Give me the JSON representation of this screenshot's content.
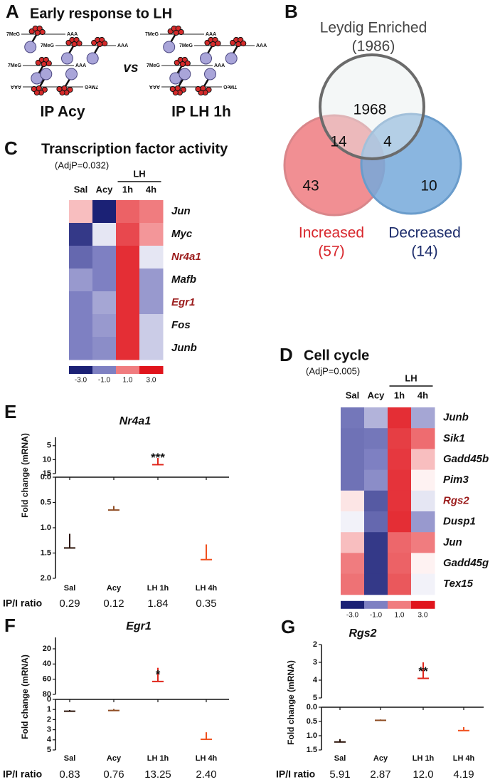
{
  "chart_data": [
    {
      "panel": "A",
      "type": "diagram",
      "title": "Early response to LH",
      "cap_label": "7MeG",
      "tail_label": "AAA",
      "separator": "vs",
      "conditions": [
        "IP Acy",
        "IP LH 1h"
      ]
    },
    {
      "panel": "B",
      "type": "venn",
      "sets": [
        {
          "name": "Leydig Enriched",
          "size": 1986,
          "size_label": "(1986)",
          "color": "#e6eded",
          "edge_color": "#6b6b6b",
          "label_color": "#444444"
        },
        {
          "name": "Increased",
          "size": 57,
          "size_label": "(57)",
          "color": "#ee7b80",
          "edge_color": "#d9868a",
          "label_color": "#d8262c"
        },
        {
          "name": "Decreased",
          "size": 14,
          "size_label": "(14)",
          "color": "#76a9da",
          "edge_color": "#6a9ccb",
          "label_color": "#1c2c6b"
        }
      ],
      "regions": [
        {
          "sets": [
            0
          ],
          "value": 1968
        },
        {
          "sets": [
            0,
            1
          ],
          "value": 14
        },
        {
          "sets": [
            0,
            2
          ],
          "value": 4
        },
        {
          "sets": [
            1
          ],
          "value": 43
        },
        {
          "sets": [
            2
          ],
          "value": 10
        }
      ]
    },
    {
      "panel": "C",
      "type": "heatmap",
      "title": "Transcription factor activity",
      "subtitle": "(AdjP=0.032)",
      "columns": [
        "Sal",
        "Acy",
        "1h",
        "4h"
      ],
      "column_group": {
        "name": "LH",
        "columns": [
          2,
          3
        ]
      },
      "rows": [
        "Jun",
        "Myc",
        "Nr4a1",
        "Mafb",
        "Egr1",
        "Fos",
        "Junb"
      ],
      "highlight_rows": [
        2,
        4
      ],
      "highlight_color": "#9b1c1c",
      "values": [
        [
          0.5,
          -3.0,
          1.5,
          1.0
        ],
        [
          -2.5,
          -0.2,
          2.0,
          0.8
        ],
        [
          -1.5,
          -1.0,
          2.5,
          -0.2
        ],
        [
          -0.8,
          -1.0,
          2.5,
          -0.8
        ],
        [
          -1.0,
          -0.7,
          2.5,
          -0.8
        ],
        [
          -1.0,
          -0.8,
          2.5,
          -0.4
        ],
        [
          -1.0,
          -0.9,
          2.5,
          -0.4
        ]
      ],
      "colorscale": [
        [
          -3,
          "#1b2175"
        ],
        [
          -1,
          "#7e80c2"
        ],
        [
          0,
          "#ffffff"
        ],
        [
          1,
          "#f07c7f"
        ],
        [
          3,
          "#e0141c"
        ]
      ],
      "cticks": [
        {
          "value": -3,
          "label": "-3.0"
        },
        {
          "value": -1,
          "label": "-1.0"
        },
        {
          "value": 1,
          "label": "1.0"
        },
        {
          "value": 3,
          "label": "3.0"
        }
      ]
    },
    {
      "panel": "D",
      "type": "heatmap",
      "title": "Cell cycle",
      "subtitle": "(AdjP=0.005)",
      "columns": [
        "Sal",
        "Acy",
        "1h",
        "4h"
      ],
      "column_group": {
        "name": "LH",
        "columns": [
          2,
          3
        ]
      },
      "rows": [
        "Junb",
        "Sik1",
        "Gadd45b",
        "Pim3",
        "Rgs2",
        "Dusp1",
        "Jun",
        "Gadd45g",
        "Tex15"
      ],
      "highlight_rows": [
        4
      ],
      "highlight_color": "#9b1c1c",
      "values": [
        [
          -1.2,
          -0.6,
          2.5,
          -0.7
        ],
        [
          -1.3,
          -1.2,
          2.2,
          1.3
        ],
        [
          -1.3,
          -1.0,
          2.3,
          0.5
        ],
        [
          -1.3,
          -0.9,
          2.4,
          0.1
        ],
        [
          0.2,
          -1.8,
          2.4,
          -0.2
        ],
        [
          -0.1,
          -1.5,
          2.5,
          -0.8
        ],
        [
          0.5,
          -2.5,
          1.4,
          1.0
        ],
        [
          1.0,
          -2.5,
          1.5,
          0.1
        ],
        [
          1.2,
          -2.5,
          1.7,
          -0.1
        ]
      ],
      "colorscale": [
        [
          -3,
          "#1b2175"
        ],
        [
          -1,
          "#7e80c2"
        ],
        [
          0,
          "#ffffff"
        ],
        [
          1,
          "#f07c7f"
        ],
        [
          3,
          "#e0141c"
        ]
      ],
      "cticks": [
        {
          "value": -3,
          "label": "-3.0"
        },
        {
          "value": -1,
          "label": "-1.0"
        },
        {
          "value": 1,
          "label": "1.0"
        },
        {
          "value": 3,
          "label": "3.0"
        }
      ]
    },
    {
      "panel": "E",
      "type": "bar",
      "title": "Nr4a1",
      "ylabel": "Fold change (mRNA)",
      "categories": [
        "Sal",
        "Acy",
        "LH 1h",
        "LH 4h"
      ],
      "colors": [
        "#2a1208",
        "#8f4d24",
        "#e0261b",
        "#f0501e"
      ],
      "values": [
        1.12,
        0.57,
        9.4,
        1.33
      ],
      "errors": [
        0.28,
        0.08,
        2.4,
        0.3
      ],
      "significance": [
        null,
        null,
        "***",
        null
      ],
      "axes": [
        {
          "ylim": [
            0,
            2
          ],
          "yticks": [
            {
              "value": 0,
              "label": "0.0"
            },
            0.5,
            {
              "value": 1,
              "label": "1.0"
            },
            1.5,
            {
              "value": 2,
              "label": "2.0"
            }
          ]
        },
        {
          "ylim": [
            2,
            15
          ],
          "yticks": [
            5,
            10,
            15
          ]
        }
      ],
      "ratio_label": "IP/I ratio",
      "ratios": [
        0.29,
        0.12,
        1.84,
        0.35
      ],
      "ratio_labels": [
        "0.29",
        "0.12",
        "1.84",
        "0.35"
      ]
    },
    {
      "panel": "F",
      "type": "bar",
      "title": "Egr1",
      "ylabel": "Fold change (mRNA)",
      "categories": [
        "Sal",
        "Acy",
        "LH 1h",
        "LH 4h"
      ],
      "colors": [
        "#2a1208",
        "#8f4d24",
        "#e0261b",
        "#f0501e"
      ],
      "values": [
        1.05,
        0.95,
        45,
        3.25
      ],
      "errors": [
        0.12,
        0.15,
        18,
        0.7
      ],
      "significance": [
        null,
        null,
        "*",
        null
      ],
      "axes": [
        {
          "ylim": [
            0,
            5
          ],
          "yticks": [
            0,
            1,
            2,
            3,
            4,
            5
          ]
        },
        {
          "ylim": [
            5,
            80
          ],
          "yticks": [
            20,
            40,
            60,
            80
          ]
        }
      ],
      "ratio_label": "IP/I ratio",
      "ratios": [
        0.83,
        0.76,
        13.25,
        2.4
      ],
      "ratio_labels": [
        "0.83",
        "0.76",
        "13.25",
        "2.40"
      ]
    },
    {
      "panel": "G",
      "type": "bar",
      "title": "Rgs2",
      "ylabel": "Fold change (mRNA)",
      "categories": [
        "Sal",
        "Acy",
        "LH 1h",
        "LH 4h"
      ],
      "colors": [
        "#2a1208",
        "#8f4d24",
        "#e0261b",
        "#f0501e"
      ],
      "values": [
        1.12,
        0.43,
        3.0,
        0.7
      ],
      "errors": [
        0.1,
        0.03,
        0.9,
        0.12
      ],
      "significance": [
        null,
        null,
        "**",
        null
      ],
      "axes": [
        {
          "ylim": [
            0,
            1.5
          ],
          "yticks": [
            {
              "value": 0,
              "label": "0.0"
            },
            0.5,
            {
              "value": 1,
              "label": "1.0"
            },
            1.5
          ]
        },
        {
          "ylim": [
            2,
            5
          ],
          "yticks": [
            2,
            3,
            4,
            5
          ]
        }
      ],
      "ratio_label": "IP/I ratio",
      "ratios": [
        5.91,
        2.87,
        12.0,
        4.19
      ],
      "ratio_labels": [
        "5.91",
        "2.87",
        "12.0",
        "4.19"
      ]
    }
  ]
}
